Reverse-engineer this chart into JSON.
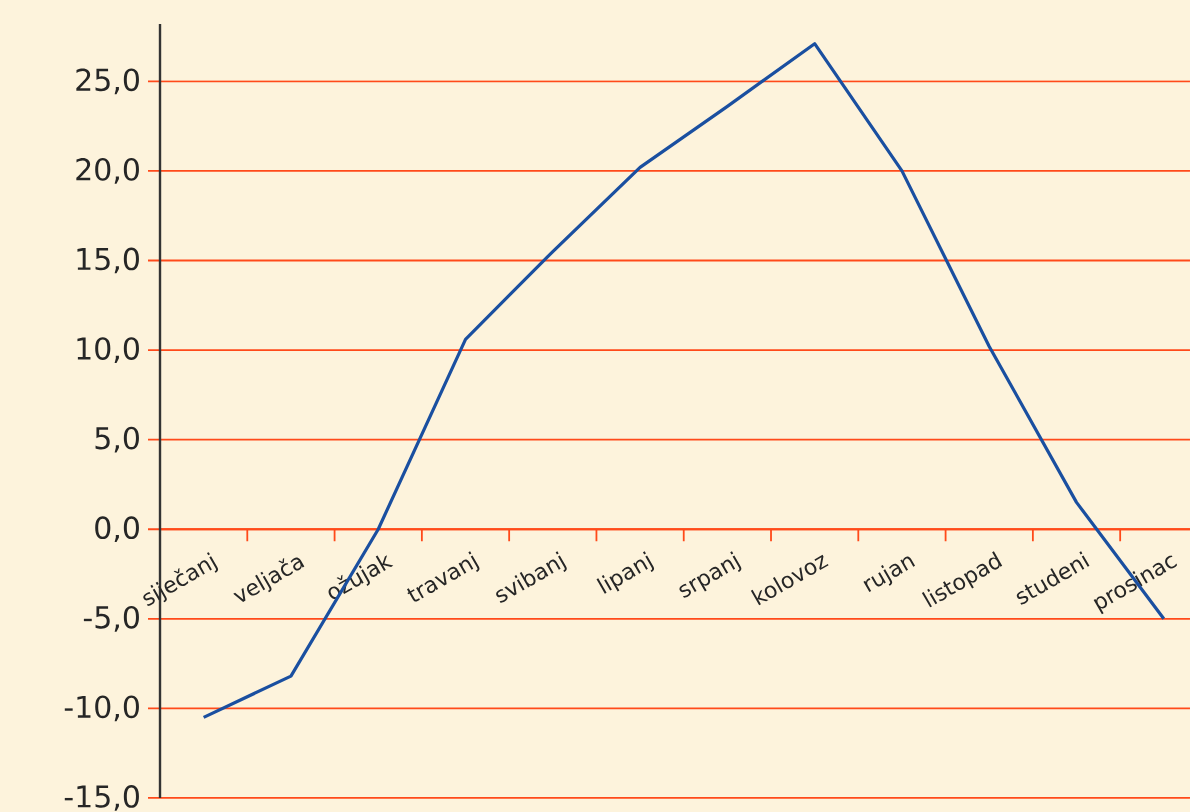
{
  "chart_data": {
    "type": "line",
    "categories": [
      "siječanj",
      "veljača",
      "ožujak",
      "travanj",
      "svibanj",
      "lipanj",
      "srpanj",
      "kolovoz",
      "rujan",
      "listopad",
      "studeni",
      "prosinac"
    ],
    "values": [
      -10.5,
      -8.2,
      0,
      10.6,
      15.5,
      20.2,
      23.6,
      27.1,
      20.0,
      10.2,
      1.5,
      -5.0
    ],
    "color": "#1a4fa0",
    "ylim": [
      -15,
      28.2
    ],
    "yticks": [
      {
        "value": -15,
        "label": "-15,0"
      },
      {
        "value": -10,
        "label": "-10,0"
      },
      {
        "value": -5,
        "label": "-5,0"
      },
      {
        "value": 0,
        "label": "0,0"
      },
      {
        "value": 5,
        "label": "5,0"
      },
      {
        "value": 10,
        "label": "10,0"
      },
      {
        "value": 15,
        "label": "15,0"
      },
      {
        "value": 20,
        "label": "20,0"
      },
      {
        "value": 25,
        "label": "25,0"
      }
    ],
    "grid": "y"
  }
}
